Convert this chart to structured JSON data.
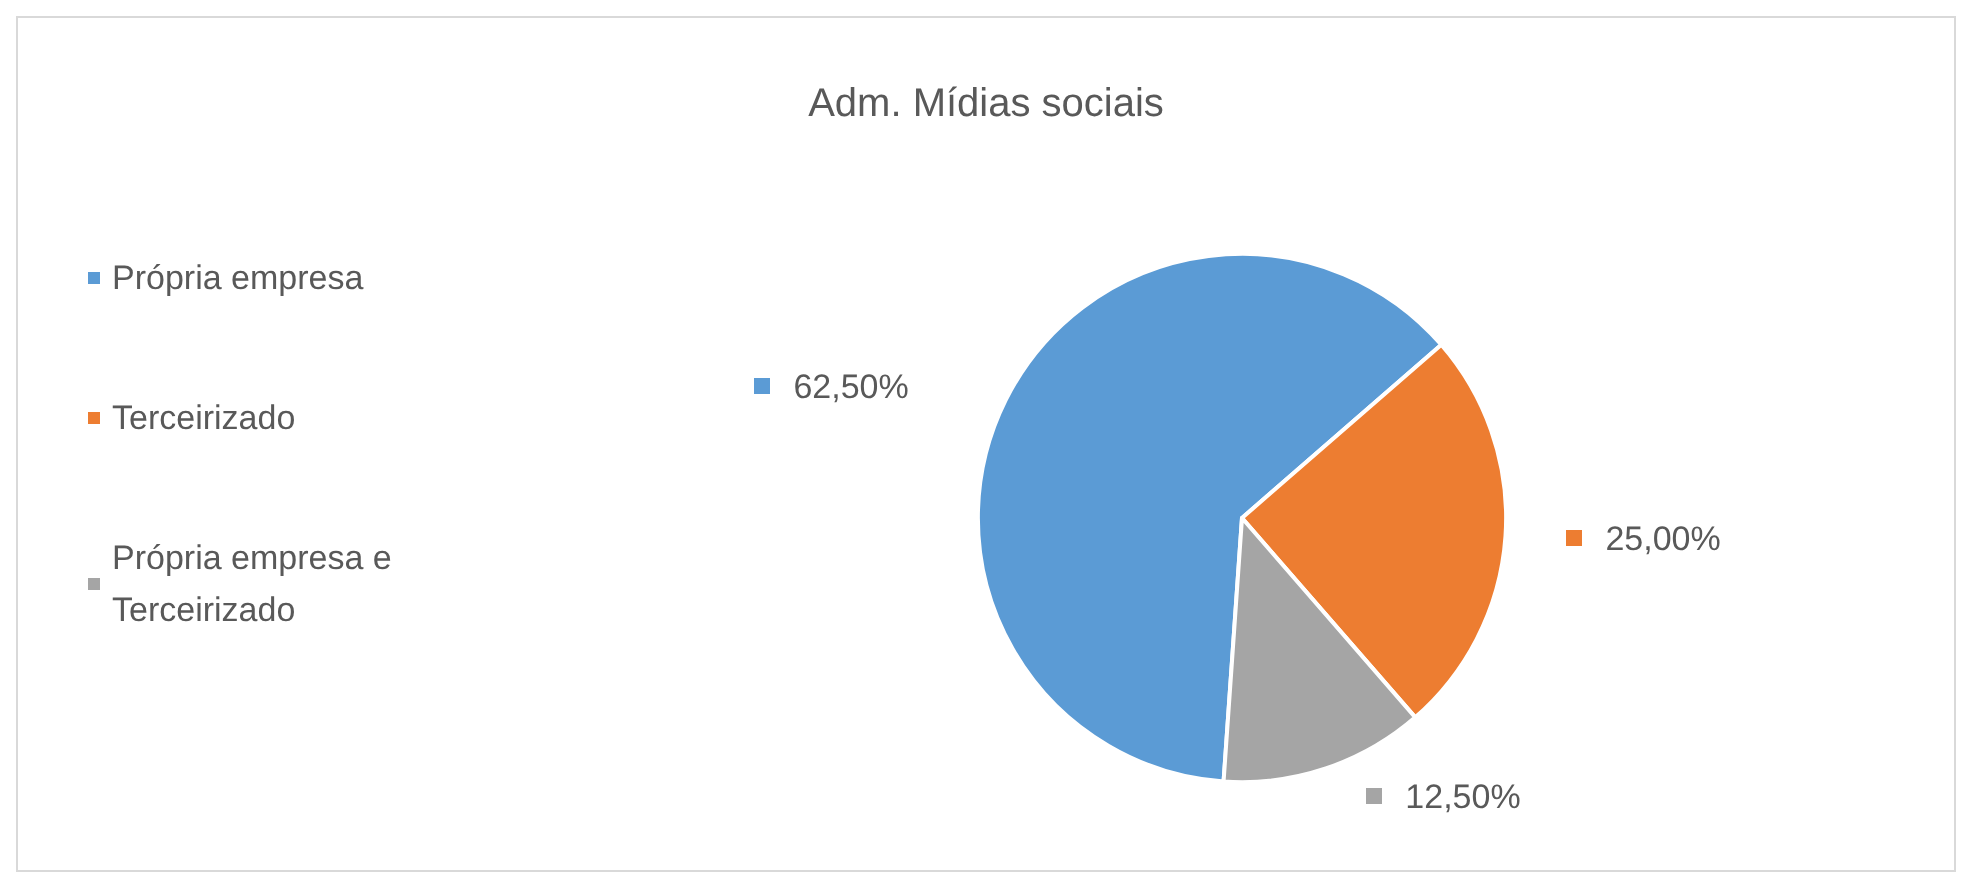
{
  "chart_data": {
    "type": "pie",
    "title": "Adm. Mídias sociais",
    "categories": [
      "Própria empresa",
      "Terceirizado",
      "Própria empresa e Terceirizado"
    ],
    "values": [
      62.5,
      25,
      12.5
    ],
    "colors": [
      "#5b9bd5",
      "#ed7d31",
      "#a5a5a5"
    ],
    "value_labels": [
      "62,50%",
      "25,00%",
      "12,50%"
    ],
    "legend": "left"
  }
}
